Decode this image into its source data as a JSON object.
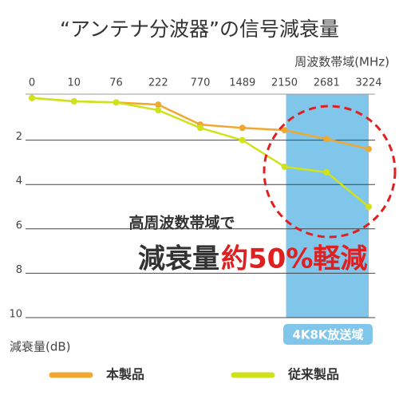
{
  "chart_data": {
    "type": "line",
    "title": "“アンテナ分波器”の信号減衰量",
    "x_label": "周波数帯域(MHz)",
    "y_label": "減衰量(dB)",
    "categories": [
      "0",
      "10",
      "76",
      "222",
      "770",
      "1489",
      "2150",
      "2681",
      "3224"
    ],
    "series": [
      {
        "name": "本製品",
        "color": "#f0a830",
        "values": [
          0.1,
          0.25,
          0.3,
          0.4,
          1.3,
          1.45,
          1.55,
          1.95,
          2.4
        ]
      },
      {
        "name": "従来製品",
        "color": "#cfe21a",
        "values": [
          0.1,
          0.25,
          0.3,
          0.65,
          1.45,
          2.0,
          3.2,
          3.45,
          5.0
        ]
      }
    ],
    "ylim": [
      0,
      10
    ],
    "yticks": [
      2,
      4,
      6,
      8,
      10
    ],
    "y_reversed": true,
    "grid": true,
    "highlight_label": "4K8K放送域",
    "highlight_color": "#7fc6ea",
    "annotation_1": "高周波数帯域で",
    "annotation_2": "減衰量",
    "annotation_3": "約50%軽減"
  }
}
